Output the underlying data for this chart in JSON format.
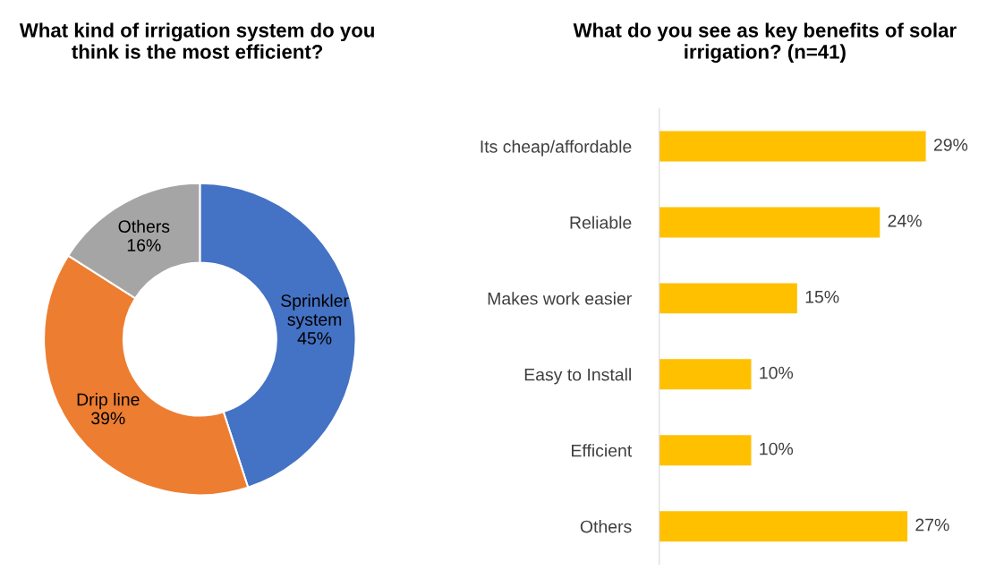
{
  "chart_data": [
    {
      "type": "donut",
      "title": "What kind of irrigation system do you think is the most efficient?",
      "categories": [
        "Sprinkler system",
        "Drip line",
        "Others"
      ],
      "values": [
        45,
        39,
        16
      ],
      "colors": [
        "#4472c4",
        "#ed7d31",
        "#a5a5a5"
      ],
      "value_labels": [
        "45%",
        "39%",
        "16%"
      ]
    },
    {
      "type": "bar",
      "orientation": "horizontal",
      "title": "What do you see as key benefits of solar irrigation? (n=41)",
      "categories": [
        "Its cheap/affordable",
        "Reliable",
        "Makes work easier",
        "Easy to Install",
        "Efficient",
        "Others"
      ],
      "values": [
        29,
        24,
        15,
        10,
        10,
        27
      ],
      "color": "#ffc000",
      "value_labels": [
        "29%",
        "24%",
        "15%",
        "10%",
        "10%",
        "27%"
      ]
    }
  ]
}
